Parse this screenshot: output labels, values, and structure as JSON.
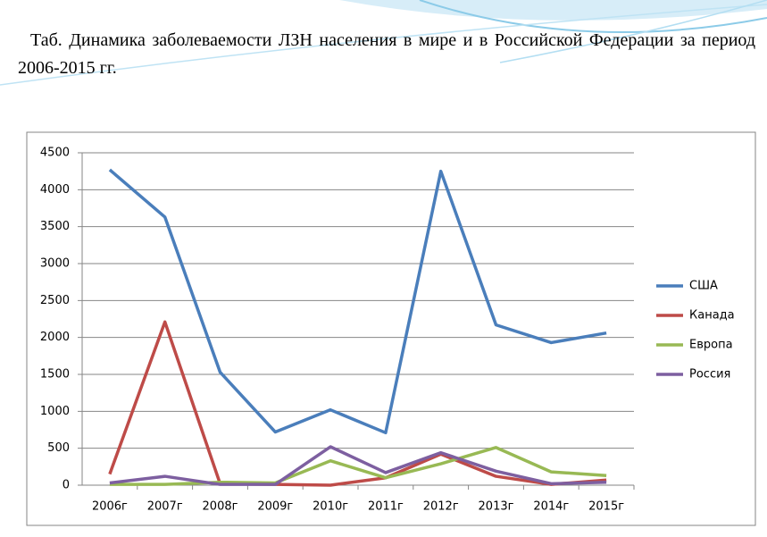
{
  "chart_data": {
    "type": "line",
    "title": "Таб. Динамика заболеваемости ЛЗН населения в мире и в Российской Федерации за период 2006-2015 гг.",
    "categories": [
      "2006г",
      "2007г",
      "2008г",
      "2009г",
      "2010г",
      "2011г",
      "2012г",
      "2013г",
      "2014г",
      "2015г"
    ],
    "series": [
      {
        "name": "США",
        "color": "#4a7ebb",
        "values": [
          4270,
          3630,
          1530,
          720,
          1020,
          710,
          4250,
          2170,
          1930,
          2060
        ]
      },
      {
        "name": "Канада",
        "color": "#be4b48",
        "values": [
          150,
          2210,
          20,
          10,
          0,
          100,
          420,
          120,
          10,
          70
        ]
      },
      {
        "name": "Европа",
        "color": "#98b954",
        "values": [
          10,
          10,
          40,
          30,
          330,
          100,
          290,
          510,
          180,
          130
        ]
      },
      {
        "name": "Россия",
        "color": "#7d5fa0",
        "values": [
          30,
          120,
          10,
          10,
          520,
          170,
          440,
          190,
          20,
          40
        ]
      }
    ],
    "ylim": [
      0,
      4500
    ],
    "yticks": [
      0,
      500,
      1000,
      1500,
      2000,
      2500,
      3000,
      3500,
      4000,
      4500
    ],
    "grid": true,
    "legend": "right"
  }
}
